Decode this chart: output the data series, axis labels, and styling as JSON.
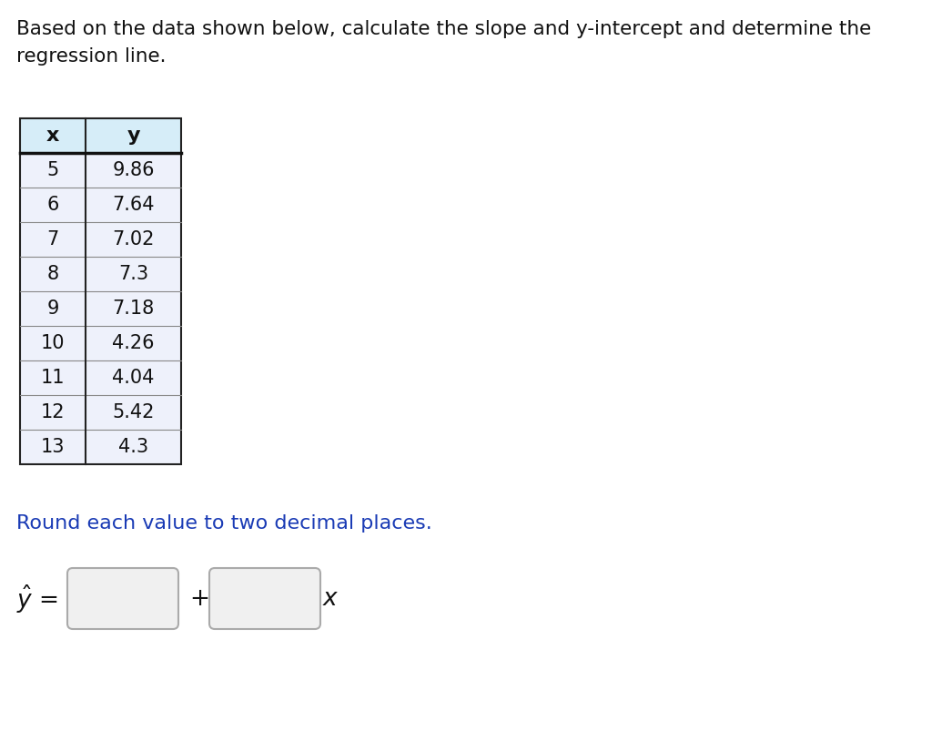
{
  "title_line1": "Based on the data shown below, calculate the slope and y-intercept and determine the",
  "title_line2": "regression line.",
  "table_headers": [
    "x",
    "y"
  ],
  "table_data": [
    [
      5,
      "9.86"
    ],
    [
      6,
      "7.64"
    ],
    [
      7,
      "7.02"
    ],
    [
      8,
      "7.3"
    ],
    [
      9,
      "7.18"
    ],
    [
      10,
      "4.26"
    ],
    [
      11,
      "4.04"
    ],
    [
      12,
      "5.42"
    ],
    [
      13,
      "4.3"
    ]
  ],
  "header_bg": "#d6edf8",
  "row_bg": "#eef1fb",
  "table_border_color": "#222222",
  "header_line_color": "#111111",
  "row_line_color": "#888888",
  "subtitle": "Round each value to two decimal places.",
  "subtitle_color": "#1a3bb5",
  "background_color": "#ffffff",
  "title_fontsize": 15.5,
  "table_fontsize": 15,
  "subtitle_fontsize": 16,
  "eq_fontsize": 17,
  "box_edge_color": "#aaaaaa",
  "box_face_color": "#f0f0f0"
}
